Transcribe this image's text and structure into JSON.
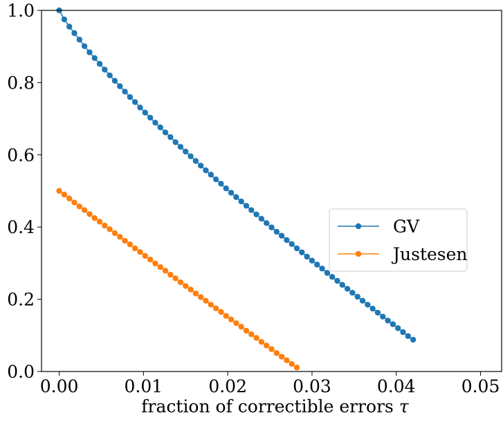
{
  "chart_data": {
    "type": "line",
    "title": "",
    "xlabel": "fraction of correctible errors",
    "xlabel_symbol": "τ",
    "ylabel": "",
    "xlim": [
      -0.0021,
      0.0525
    ],
    "ylim": [
      0.0,
      1.0
    ],
    "x_ticks": [
      0.0,
      0.01,
      0.02,
      0.03,
      0.04,
      0.05
    ],
    "x_tick_labels": [
      "0.00",
      "0.01",
      "0.02",
      "0.03",
      "0.04",
      "0.05"
    ],
    "y_ticks": [
      0.0,
      0.2,
      0.4,
      0.6,
      0.8,
      1.0
    ],
    "y_tick_labels": [
      "0.0",
      "0.2",
      "0.4",
      "0.6",
      "0.8",
      "1.0"
    ],
    "grid": false,
    "legend_position": "center-right",
    "series": [
      {
        "name": "GV",
        "color": "#1f77b4",
        "marker": "circle",
        "x": [
          0.0,
          0.0006,
          0.0012,
          0.0018,
          0.0024,
          0.003,
          0.0036,
          0.0042,
          0.0048,
          0.0054,
          0.006,
          0.0066,
          0.0072,
          0.0078,
          0.0084,
          0.009,
          0.0096,
          0.0102,
          0.0108,
          0.0114,
          0.012,
          0.0126,
          0.0132,
          0.0138,
          0.0144,
          0.015,
          0.0156,
          0.0162,
          0.0168,
          0.0174,
          0.018,
          0.0186,
          0.0192,
          0.0198,
          0.0204,
          0.021,
          0.0216,
          0.0222,
          0.0228,
          0.0234,
          0.024,
          0.0246,
          0.0252,
          0.0258,
          0.0264,
          0.027,
          0.0276,
          0.0282,
          0.0288,
          0.0294,
          0.03,
          0.0306,
          0.0312,
          0.0318,
          0.0324,
          0.033,
          0.0336,
          0.0342,
          0.0348,
          0.0354,
          0.036,
          0.0366,
          0.0372,
          0.0378,
          0.0384,
          0.039,
          0.0396,
          0.0402,
          0.0408,
          0.0414,
          0.042
        ],
        "y": [
          1.0,
          0.975,
          0.955,
          0.937,
          0.919,
          0.901,
          0.884,
          0.868,
          0.852,
          0.836,
          0.82,
          0.805,
          0.79,
          0.775,
          0.76,
          0.746,
          0.731,
          0.717,
          0.703,
          0.689,
          0.676,
          0.662,
          0.649,
          0.635,
          0.622,
          0.609,
          0.596,
          0.583,
          0.57,
          0.557,
          0.545,
          0.532,
          0.52,
          0.507,
          0.495,
          0.483,
          0.471,
          0.459,
          0.447,
          0.435,
          0.423,
          0.411,
          0.399,
          0.387,
          0.376,
          0.364,
          0.353,
          0.341,
          0.33,
          0.318,
          0.307,
          0.296,
          0.285,
          0.273,
          0.262,
          0.251,
          0.24,
          0.229,
          0.218,
          0.207,
          0.196,
          0.185,
          0.174,
          0.163,
          0.152,
          0.141,
          0.131,
          0.12,
          0.109,
          0.098,
          0.088
        ]
      },
      {
        "name": "Justesen",
        "color": "#ff7f0e",
        "marker": "circle",
        "x": [
          0.0,
          0.0006,
          0.0012,
          0.0018,
          0.0024,
          0.003,
          0.0036,
          0.0042,
          0.0048,
          0.0054,
          0.006,
          0.0066,
          0.0072,
          0.0078,
          0.0084,
          0.009,
          0.0096,
          0.0102,
          0.0108,
          0.0114,
          0.012,
          0.0126,
          0.0132,
          0.0138,
          0.0144,
          0.015,
          0.0156,
          0.0162,
          0.0168,
          0.0174,
          0.018,
          0.0186,
          0.0192,
          0.0198,
          0.0204,
          0.021,
          0.0216,
          0.0222,
          0.0228,
          0.0234,
          0.024,
          0.0246,
          0.0252,
          0.0258,
          0.0264,
          0.027,
          0.0276,
          0.0282
        ],
        "y": [
          0.5,
          0.49,
          0.479,
          0.468,
          0.457,
          0.447,
          0.436,
          0.425,
          0.415,
          0.404,
          0.394,
          0.383,
          0.373,
          0.362,
          0.352,
          0.341,
          0.331,
          0.32,
          0.31,
          0.299,
          0.289,
          0.279,
          0.268,
          0.258,
          0.247,
          0.237,
          0.227,
          0.216,
          0.206,
          0.196,
          0.185,
          0.175,
          0.165,
          0.154,
          0.144,
          0.134,
          0.124,
          0.113,
          0.103,
          0.093,
          0.082,
          0.072,
          0.062,
          0.051,
          0.041,
          0.031,
          0.021,
          0.011
        ]
      }
    ]
  }
}
